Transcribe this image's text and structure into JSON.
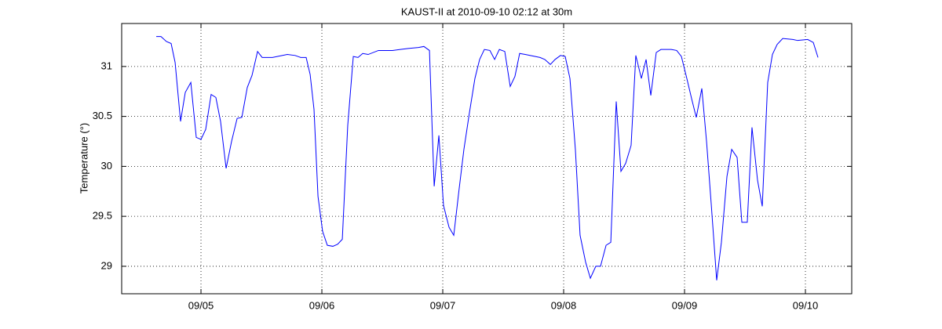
{
  "chart_data": {
    "type": "line",
    "title": "KAUST-II at 2010-09-10 02:12 at 30m",
    "y_label": "Temperature (°)",
    "x": [
      4.63,
      4.669,
      4.714,
      4.753,
      4.786,
      4.831,
      4.87,
      4.916,
      4.961,
      5.0,
      5.039,
      5.084,
      5.123,
      5.162,
      5.208,
      5.253,
      5.299,
      5.338,
      5.383,
      5.422,
      5.468,
      5.506,
      5.591,
      5.714,
      5.779,
      5.825,
      5.87,
      5.903,
      5.935,
      5.968,
      6.006,
      6.045,
      6.091,
      6.13,
      6.169,
      6.214,
      6.26,
      6.299,
      6.338,
      6.383,
      6.468,
      6.584,
      6.714,
      6.799,
      6.844,
      6.89,
      6.929,
      6.968,
      7.006,
      7.052,
      7.091,
      7.136,
      7.175,
      7.221,
      7.266,
      7.305,
      7.344,
      7.39,
      7.429,
      7.468,
      7.513,
      7.558,
      7.597,
      7.636,
      7.682,
      7.805,
      7.844,
      7.89,
      7.929,
      7.974,
      8.013,
      8.052,
      8.097,
      8.136,
      8.182,
      8.221,
      8.266,
      8.305,
      8.351,
      8.39,
      8.435,
      8.474,
      8.513,
      8.558,
      8.597,
      8.643,
      8.682,
      8.721,
      8.766,
      8.805,
      8.89,
      8.935,
      8.974,
      9.019,
      9.058,
      9.097,
      9.143,
      9.182,
      9.221,
      9.266,
      9.305,
      9.351,
      9.39,
      9.435,
      9.474,
      9.519,
      9.558,
      9.604,
      9.643,
      9.688,
      9.727,
      9.766,
      9.812,
      9.896,
      9.935,
      10.019,
      10.065,
      10.104
    ],
    "series": [
      {
        "color": "#0000ff",
        "values": [
          31.3,
          31.3,
          31.25,
          31.23,
          31.04,
          30.45,
          30.74,
          30.84,
          30.29,
          30.27,
          30.37,
          30.72,
          30.69,
          30.45,
          29.98,
          30.25,
          30.48,
          30.49,
          30.79,
          30.91,
          31.15,
          31.09,
          31.09,
          31.12,
          31.11,
          31.09,
          31.09,
          30.92,
          30.57,
          29.7,
          29.35,
          29.21,
          29.2,
          29.22,
          29.27,
          30.41,
          31.1,
          31.09,
          31.13,
          31.12,
          31.16,
          31.16,
          31.18,
          31.19,
          31.2,
          31.16,
          29.8,
          30.31,
          29.61,
          29.39,
          29.31,
          29.78,
          30.17,
          30.54,
          30.88,
          31.07,
          31.17,
          31.16,
          31.07,
          31.17,
          31.15,
          30.8,
          30.9,
          31.13,
          31.12,
          31.09,
          31.07,
          31.02,
          31.07,
          31.11,
          31.1,
          30.88,
          30.17,
          29.31,
          29.04,
          28.88,
          29.0,
          29.0,
          29.21,
          29.24,
          30.65,
          29.95,
          30.03,
          30.21,
          31.11,
          30.88,
          31.07,
          30.71,
          31.14,
          31.17,
          31.17,
          31.16,
          31.1,
          30.88,
          30.68,
          30.49,
          30.78,
          30.25,
          29.62,
          28.86,
          29.24,
          29.9,
          30.17,
          30.09,
          29.44,
          29.44,
          30.39,
          29.86,
          29.6,
          30.84,
          31.12,
          31.22,
          31.28,
          31.27,
          31.26,
          31.27,
          31.24,
          31.09
        ]
      }
    ],
    "xlim": [
      4.344,
      10.383
    ],
    "xticks": [
      {
        "value": 5,
        "label": "09/05"
      },
      {
        "value": 6,
        "label": "09/06"
      },
      {
        "value": 7,
        "label": "09/07"
      },
      {
        "value": 8,
        "label": "09/08"
      },
      {
        "value": 9,
        "label": "09/09"
      },
      {
        "value": 10,
        "label": "09/10"
      }
    ],
    "ylim": [
      28.725,
      31.43
    ],
    "yticks": [
      29,
      29.5,
      30,
      30.5,
      31
    ],
    "grid": true
  }
}
